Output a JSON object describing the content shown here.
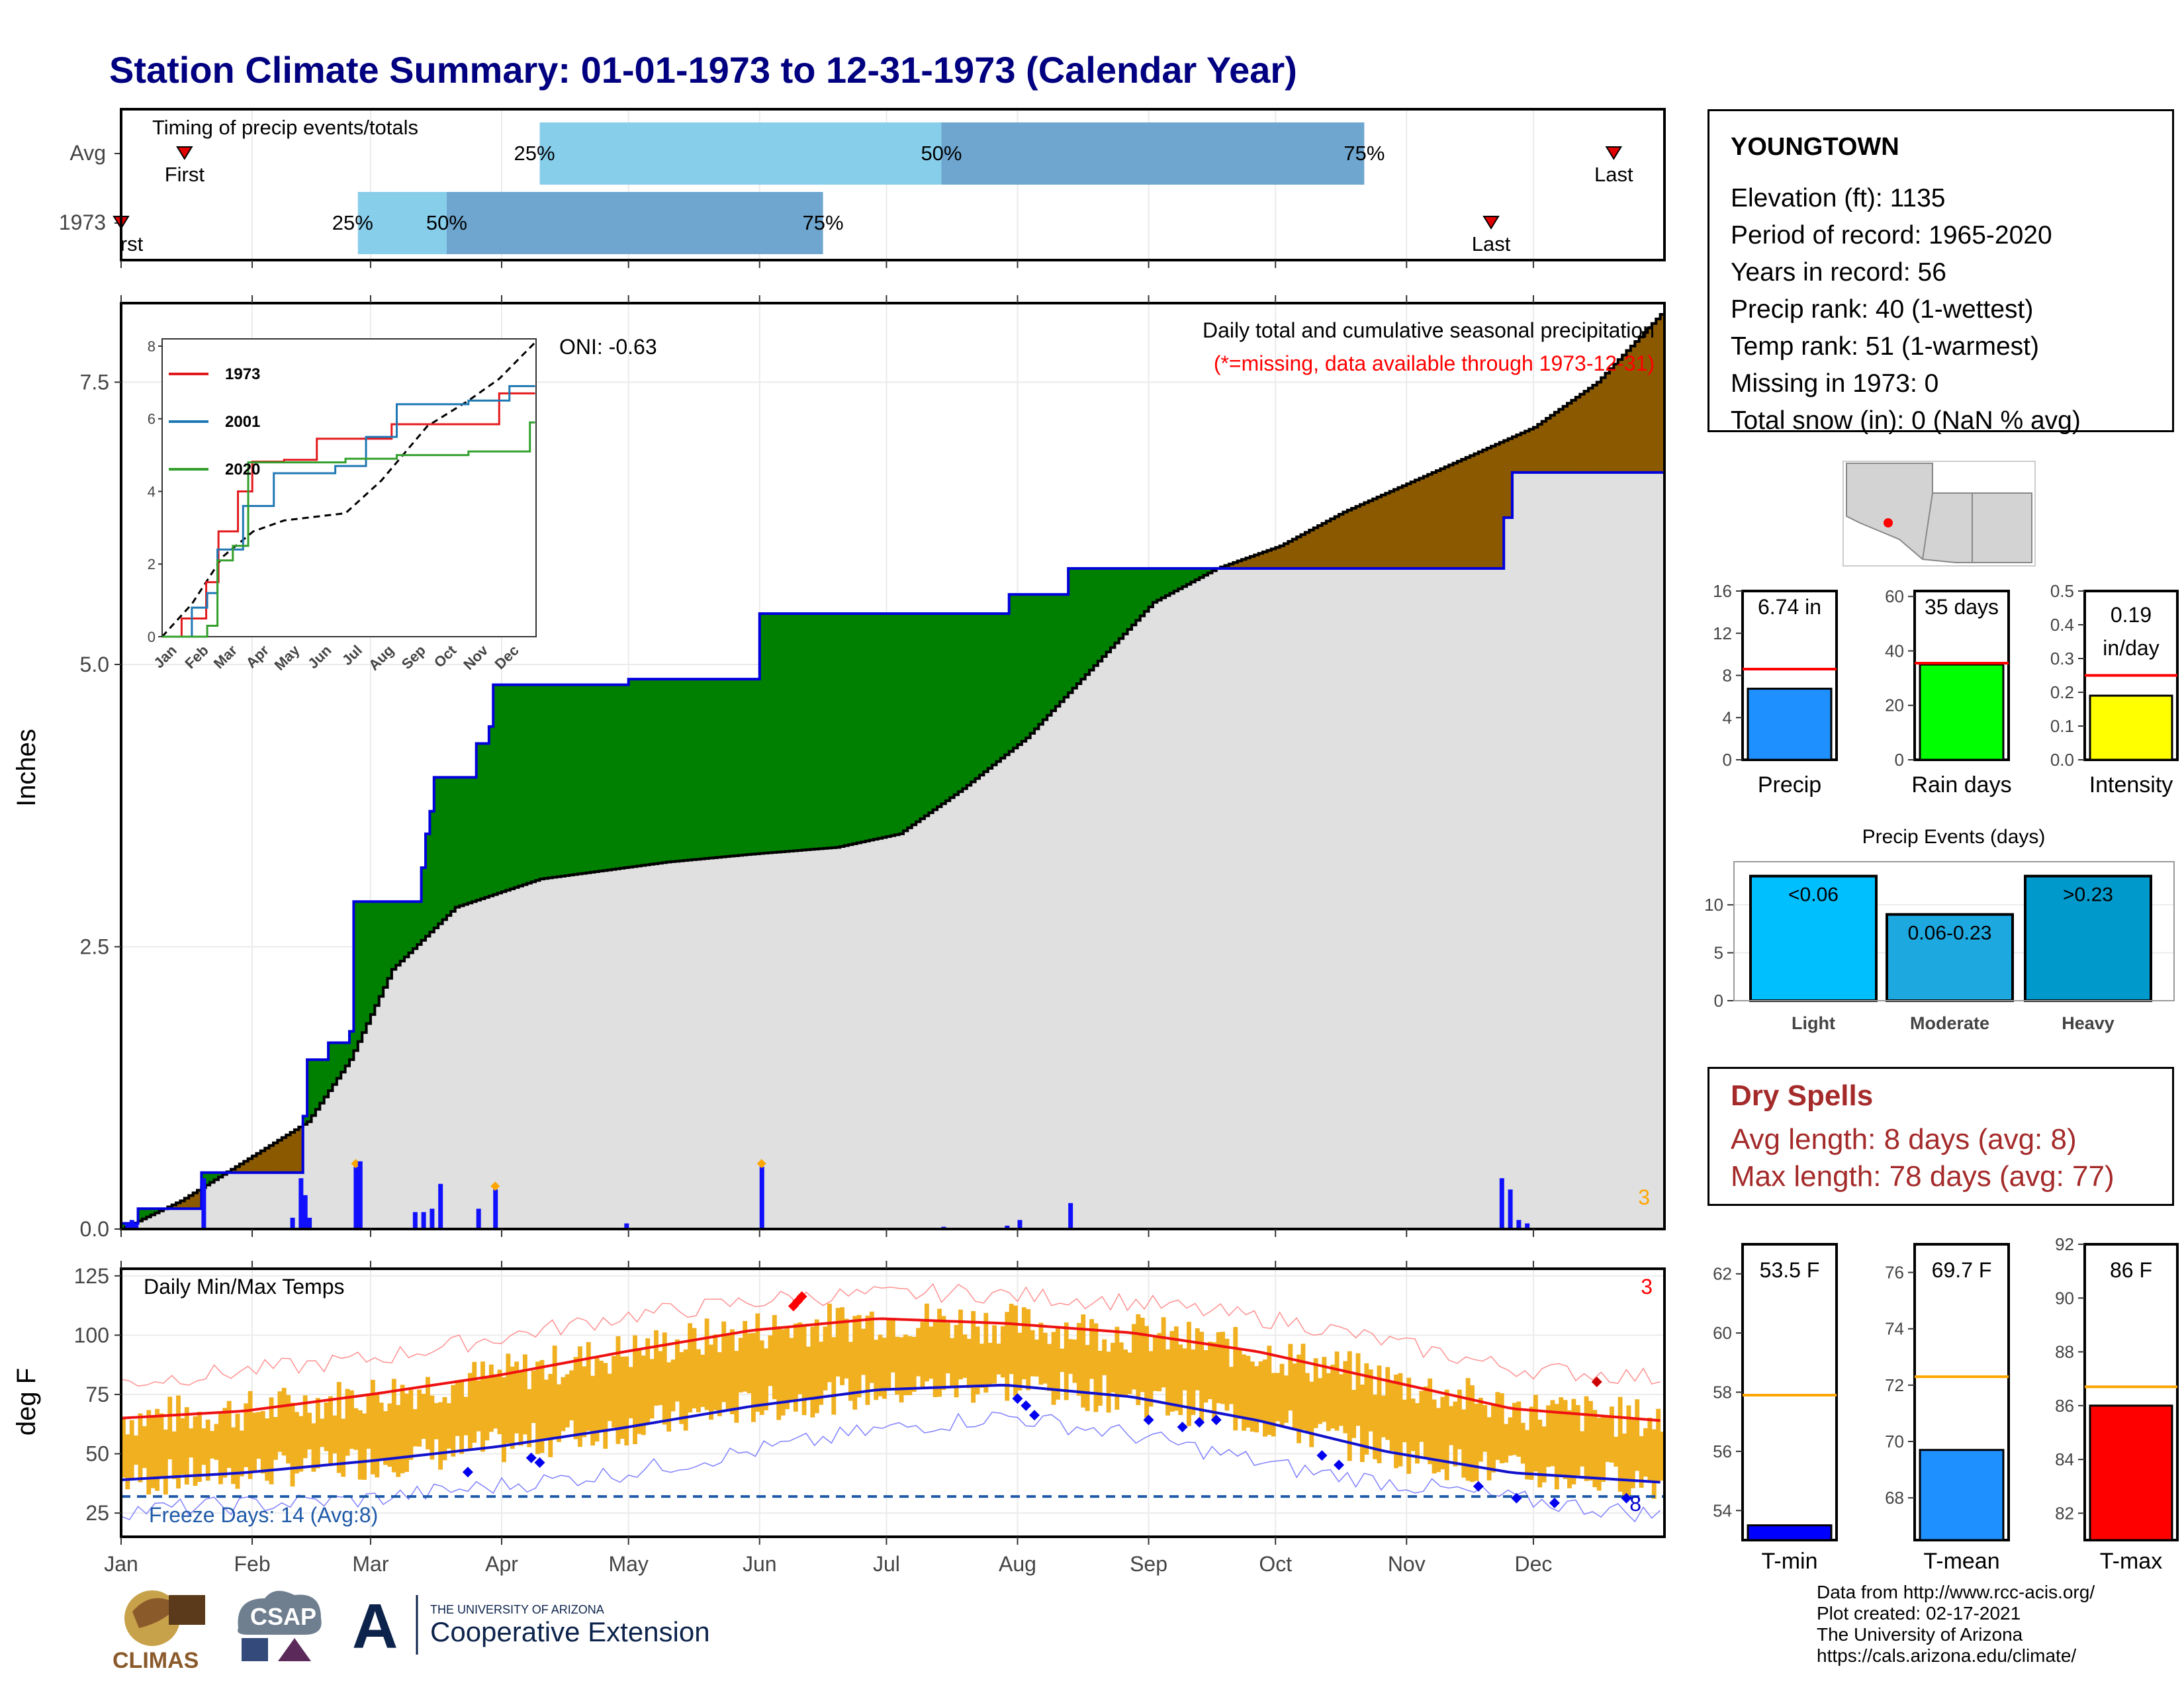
{
  "title": "Station Climate Summary: 01-01-1973 to 12-31-1973 (Calendar Year)",
  "months": [
    "Jan",
    "Feb",
    "Mar",
    "Apr",
    "May",
    "Jun",
    "Jul",
    "Aug",
    "Sep",
    "Oct",
    "Nov",
    "Dec"
  ],
  "timing": {
    "title": "Timing of precip events/totals",
    "rows": [
      "Avg",
      "1973"
    ],
    "avg": {
      "first_day": 16,
      "p25_day": 100,
      "p50_day": 195,
      "p75_day": 295,
      "last_day": 354
    },
    "year": {
      "first_day": 1,
      "p25_day": 57,
      "p50_day": 78,
      "p75_day": 167,
      "last_day": 325
    },
    "labels": {
      "first": "First",
      "last": "Last",
      "p25": "25%",
      "p50": "50%",
      "p75": "75%",
      "year_first_clipped": "rst"
    }
  },
  "precip_panel": {
    "ylabel": "Inches",
    "yticks": [
      "0.0",
      "2.5",
      "5.0",
      "7.5"
    ],
    "oni": "ONI: -0.63",
    "header_line1": "Daily total and cumulative seasonal precipitation",
    "header_line2": "(*=missing, data available through 1973-12-31)",
    "count_label": "3"
  },
  "inset": {
    "yticks": [
      "0",
      "2",
      "4",
      "6",
      "8"
    ],
    "months": [
      "Jan",
      "Feb",
      "Mar",
      "Apr",
      "May",
      "Jun",
      "Jul",
      "Aug",
      "Sep",
      "Oct",
      "Nov",
      "Dec"
    ],
    "series": [
      {
        "name": "1973",
        "color": "#e31a1c"
      },
      {
        "name": "2001",
        "color": "#1f78b4"
      },
      {
        "name": "2020",
        "color": "#33a02c"
      }
    ]
  },
  "temp_panel": {
    "ylabel": "deg F",
    "title": "Daily Min/Max Temps",
    "yticks": [
      "25",
      "50",
      "75",
      "100",
      "125"
    ],
    "freeze_label": "Freeze Days: 14 (Avg:8)",
    "count_right": "3",
    "count_bottom": "8"
  },
  "station": {
    "name": "YOUNGTOWN",
    "lines": [
      "Elevation (ft): 1135",
      "Period of record: 1965-2020",
      "Years in record: 56",
      "Precip rank: 40 (1-wettest)",
      "Temp rank: 51 (1-warmest)",
      "Missing in 1973: 0",
      "Total snow (in): 0 (NaN % avg)"
    ]
  },
  "mini_bars": [
    {
      "label": "Precip",
      "value_text": "6.74 in",
      "value": 6.74,
      "avg": 8.6,
      "ymax": 16,
      "yticks": [
        "0",
        "4",
        "8",
        "12",
        "16"
      ],
      "color": "#1e90ff"
    },
    {
      "label": "Rain days",
      "value_text": "35 days",
      "value": 35,
      "avg": 35.5,
      "ymax": 62,
      "yticks": [
        "0",
        "20",
        "40",
        "60"
      ],
      "color": "#00ff00"
    },
    {
      "label": "Intensity",
      "value_text": "0.19 in/day",
      "value": 0.19,
      "avg": 0.25,
      "ymax": 0.5,
      "yticks": [
        "0.0",
        "0.1",
        "0.2",
        "0.3",
        "0.4",
        "0.5"
      ],
      "color": "#ffff00"
    }
  ],
  "precip_events": {
    "title": "Precip Events (days)",
    "categories": [
      "Light",
      "Moderate",
      "Heavy"
    ],
    "bin_labels": [
      "<0.06",
      "0.06-0.23",
      ">0.23"
    ],
    "values": [
      13,
      9,
      13
    ],
    "yticks": [
      "0",
      "5",
      "10"
    ],
    "colors": [
      "#00bfff",
      "#1ea8e0",
      "#0099cc"
    ]
  },
  "dry_spells": {
    "title": "Dry Spells",
    "avg_length": "Avg length: 8 days (avg: 8)",
    "max_length": "Max length: 78 days (avg: 77)"
  },
  "temp_bars": [
    {
      "label": "T-min",
      "value_text": "53.5 F",
      "value": 53.5,
      "avg": 57.9,
      "ymin": 53,
      "ymax": 63,
      "yticks": [
        "54",
        "56",
        "58",
        "60",
        "62"
      ],
      "color": "#0000ff"
    },
    {
      "label": "T-mean",
      "value_text": "69.7 F",
      "value": 69.7,
      "avg": 72.3,
      "ymin": 66.5,
      "ymax": 77,
      "yticks": [
        "68",
        "70",
        "72",
        "74",
        "76"
      ],
      "color": "#1e90ff"
    },
    {
      "label": "T-max",
      "value_text": "86 F",
      "value": 86,
      "avg": 86.7,
      "ymin": 81,
      "ymax": 92,
      "yticks": [
        "82",
        "84",
        "86",
        "88",
        "90",
        "92"
      ],
      "color": "#ff0000"
    }
  ],
  "credits": [
    "Data from http://www.rcc-acis.org/",
    "Plot created: 02-17-2021",
    "The University of Arizona",
    "https://cals.arizona.edu/climate/"
  ],
  "logos": {
    "climas": "CLIMAS",
    "csap": "CSAP",
    "university": "THE UNIVERSITY OF ARIZONA",
    "extension": "Cooperative Extension",
    "a_mark": "A"
  },
  "chart_data": [
    {
      "type": "area",
      "title": "Daily total and cumulative seasonal precipitation",
      "ylabel": "Inches",
      "ylim": [
        0,
        8.2
      ],
      "x_unit": "day of year",
      "series": [
        {
          "name": "cumulative_1973",
          "points": [
            [
              1,
              0.05
            ],
            [
              5,
              0.18
            ],
            [
              19,
              0.18
            ],
            [
              20,
              0.5
            ],
            [
              41,
              0.5
            ],
            [
              44,
              1.0
            ],
            [
              45,
              1.5
            ],
            [
              50,
              1.65
            ],
            [
              55,
              1.75
            ],
            [
              56,
              2.9
            ],
            [
              71,
              2.9
            ],
            [
              72,
              3.2
            ],
            [
              73,
              3.5
            ],
            [
              74,
              3.7
            ],
            [
              75,
              4.0
            ],
            [
              84,
              4.0
            ],
            [
              85,
              4.3
            ],
            [
              88,
              4.45
            ],
            [
              89,
              4.82
            ],
            [
              120,
              4.82
            ],
            [
              121,
              4.87
            ],
            [
              151,
              4.87
            ],
            [
              152,
              5.45
            ],
            [
              210,
              5.45
            ],
            [
              211,
              5.62
            ],
            [
              224,
              5.62
            ],
            [
              225,
              5.85
            ],
            [
              292,
              5.85
            ],
            [
              327,
              5.85
            ],
            [
              328,
              6.3
            ],
            [
              330,
              6.7
            ],
            [
              365,
              6.7
            ]
          ]
        },
        {
          "name": "cumulative_avg",
          "points": [
            [
              1,
              0.0
            ],
            [
              15,
              0.25
            ],
            [
              30,
              0.6
            ],
            [
              45,
              0.95
            ],
            [
              55,
              1.5
            ],
            [
              65,
              2.3
            ],
            [
              80,
              2.85
            ],
            [
              100,
              3.1
            ],
            [
              130,
              3.25
            ],
            [
              150,
              3.32
            ],
            [
              170,
              3.38
            ],
            [
              185,
              3.5
            ],
            [
              200,
              3.9
            ],
            [
              215,
              4.35
            ],
            [
              230,
              4.95
            ],
            [
              245,
              5.55
            ],
            [
              260,
              5.85
            ],
            [
              275,
              6.05
            ],
            [
              290,
              6.35
            ],
            [
              305,
              6.6
            ],
            [
              320,
              6.85
            ],
            [
              335,
              7.1
            ],
            [
              350,
              7.5
            ],
            [
              365,
              8.1
            ]
          ]
        }
      ],
      "daily_bars": [
        [
          2,
          0.05
        ],
        [
          3,
          0.08
        ],
        [
          4,
          0.05
        ],
        [
          20,
          0.45
        ],
        [
          41,
          0.1
        ],
        [
          43,
          0.45
        ],
        [
          44,
          0.3
        ],
        [
          45,
          0.1
        ],
        [
          56,
          0.55
        ],
        [
          57,
          0.6
        ],
        [
          70,
          0.15
        ],
        [
          72,
          0.15
        ],
        [
          74,
          0.18
        ],
        [
          76,
          0.4
        ],
        [
          85,
          0.18
        ],
        [
          89,
          0.35
        ],
        [
          120,
          0.05
        ],
        [
          152,
          0.55
        ],
        [
          195,
          0.02
        ],
        [
          210,
          0.03
        ],
        [
          213,
          0.08
        ],
        [
          225,
          0.23
        ],
        [
          327,
          0.45
        ],
        [
          329,
          0.35
        ],
        [
          331,
          0.08
        ],
        [
          333,
          0.05
        ]
      ]
    },
    {
      "type": "line",
      "title": "Daily Min/Max Temps",
      "ylabel": "deg F",
      "ylim": [
        15,
        128
      ],
      "x_unit": "day of year",
      "series": [
        {
          "name": "avg_max",
          "points": [
            [
              1,
              65
            ],
            [
              30,
              68
            ],
            [
              60,
              75
            ],
            [
              90,
              83
            ],
            [
              120,
              93
            ],
            [
              150,
              102
            ],
            [
              180,
              107
            ],
            [
              210,
              105
            ],
            [
              240,
              101
            ],
            [
              270,
              93
            ],
            [
              300,
              81
            ],
            [
              330,
              69
            ],
            [
              365,
              64
            ]
          ]
        },
        {
          "name": "avg_min",
          "points": [
            [
              1,
              39
            ],
            [
              30,
              42
            ],
            [
              60,
              47
            ],
            [
              90,
              53
            ],
            [
              120,
              61
            ],
            [
              150,
              70
            ],
            [
              180,
              77
            ],
            [
              210,
              79
            ],
            [
              240,
              74
            ],
            [
              270,
              64
            ],
            [
              300,
              51
            ],
            [
              330,
              42
            ],
            [
              365,
              38
            ]
          ]
        },
        {
          "name": "record_max",
          "points": [
            [
              1,
              80
            ],
            [
              60,
              90
            ],
            [
              120,
              108
            ],
            [
              160,
              116
            ],
            [
              200,
              118
            ],
            [
              240,
              114
            ],
            [
              280,
              105
            ],
            [
              330,
              86
            ],
            [
              365,
              82
            ]
          ]
        },
        {
          "name": "record_min",
          "points": [
            [
              1,
              26
            ],
            [
              60,
              31
            ],
            [
              120,
              42
            ],
            [
              180,
              60
            ],
            [
              210,
              66
            ],
            [
              240,
              58
            ],
            [
              280,
              43
            ],
            [
              330,
              31
            ],
            [
              365,
              24
            ]
          ]
        }
      ],
      "freeze_line": 32
    }
  ]
}
